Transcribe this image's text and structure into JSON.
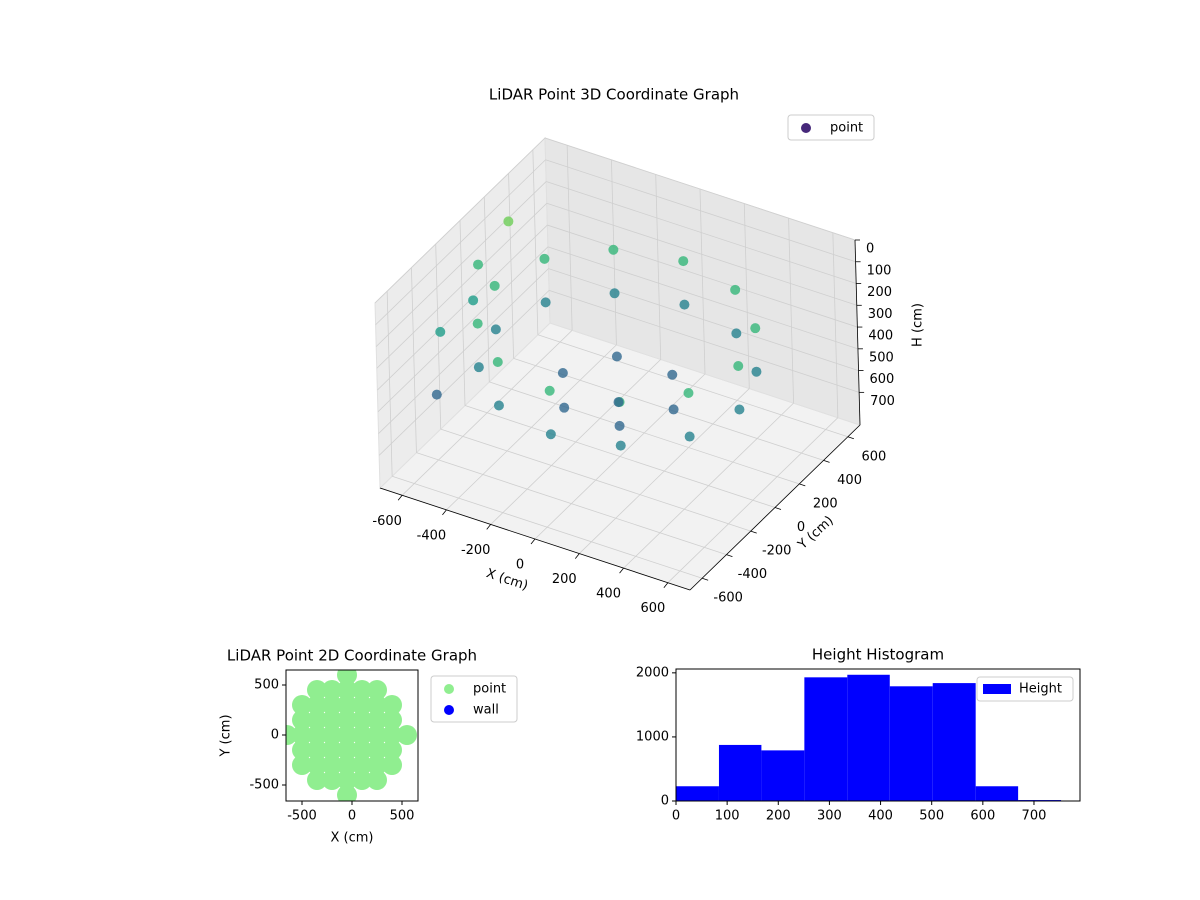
{
  "chart_data": [
    {
      "type": "scatter3d",
      "title": "LiDAR Point 3D Coordinate Graph",
      "xlabel": "X (cm)",
      "ylabel": "Y (cm)",
      "zlabel": "H (cm)",
      "series": [
        {
          "name": "point",
          "color": "#46287a",
          "colormap": "viridis",
          "color_by": "z",
          "colormap_reversed": true,
          "x": [
            550,
            476,
            275,
            0,
            -275,
            -476,
            -550,
            -476,
            -275,
            0,
            275,
            476,
            550,
            476,
            275,
            0,
            -275,
            -476,
            -550,
            -476,
            -275,
            0,
            275,
            476,
            250,
            125,
            -125,
            -250,
            -125,
            125,
            0,
            -650,
            -680,
            -690,
            -600,
            -650
          ],
          "y": [
            0,
            275,
            476,
            550,
            476,
            275,
            0,
            -275,
            -476,
            -550,
            -476,
            -275,
            0,
            275,
            476,
            550,
            476,
            275,
            0,
            -275,
            -476,
            -550,
            -476,
            -275,
            0,
            217,
            217,
            0,
            -217,
            -217,
            0,
            300,
            100,
            -200,
            -400,
            0
          ],
          "z": [
            250,
            250,
            250,
            250,
            250,
            250,
            250,
            250,
            250,
            250,
            250,
            250,
            450,
            450,
            450,
            450,
            450,
            450,
            450,
            450,
            450,
            450,
            450,
            450,
            550,
            550,
            550,
            550,
            550,
            550,
            600,
            150,
            250,
            400,
            550,
            350
          ]
        }
      ],
      "xlim": [
        -700,
        700
      ],
      "ylim": [
        -700,
        700
      ],
      "zlim": [
        0,
        850
      ],
      "z_inverted": true,
      "xticks": [
        -600,
        -400,
        -200,
        0,
        200,
        400,
        600
      ],
      "yticks": [
        -600,
        -400,
        -200,
        0,
        200,
        400,
        600
      ],
      "zticks": [
        0,
        100,
        200,
        300,
        400,
        500,
        600,
        700
      ],
      "grid": true,
      "legend": "upper right"
    },
    {
      "type": "scatter",
      "title": "LiDAR Point 2D Coordinate Graph",
      "xlabel": "X (cm)",
      "ylabel": "Y (cm)",
      "series": [
        {
          "name": "point",
          "color": "#90ee90",
          "x": [
            -50,
            -350,
            -200,
            -50,
            100,
            250,
            -500,
            -350,
            -200,
            -50,
            100,
            250,
            400,
            -500,
            -350,
            -200,
            -50,
            100,
            250,
            400,
            -650,
            -500,
            -350,
            -200,
            -50,
            100,
            250,
            400,
            550,
            -500,
            -350,
            -200,
            -50,
            100,
            250,
            400,
            -500,
            -350,
            -200,
            -50,
            100,
            250,
            400,
            -350,
            -200,
            -50,
            100,
            250,
            -50
          ],
          "y": [
            600,
            450,
            450,
            450,
            450,
            450,
            300,
            300,
            300,
            300,
            300,
            300,
            300,
            150,
            150,
            150,
            150,
            150,
            150,
            150,
            0,
            0,
            0,
            0,
            0,
            0,
            0,
            0,
            0,
            -150,
            -150,
            -150,
            -150,
            -150,
            -150,
            -150,
            -300,
            -300,
            -300,
            -300,
            -300,
            -300,
            -300,
            -450,
            -450,
            -450,
            -450,
            -450,
            -600
          ]
        },
        {
          "name": "wall",
          "color": "#0000ff",
          "x": [],
          "y": []
        }
      ],
      "xlim": [
        -660,
        660
      ],
      "ylim": [
        -660,
        650
      ],
      "xticks": [
        -500,
        0,
        500
      ],
      "yticks": [
        -500,
        0,
        500
      ],
      "legend": "outside right"
    },
    {
      "type": "histogram",
      "title": "Height Histogram",
      "bins": [
        0,
        84,
        167,
        251,
        335,
        418,
        502,
        586,
        669,
        753
      ],
      "series": [
        {
          "name": "Height",
          "color": "#0000ff",
          "values": [
            230,
            875,
            790,
            1930,
            1970,
            1790,
            1840,
            230,
            15
          ]
        }
      ],
      "xlim": [
        0,
        790
      ],
      "ylim": [
        0,
        2060
      ],
      "xticks": [
        0,
        100,
        200,
        300,
        400,
        500,
        600,
        700
      ],
      "yticks": [
        0,
        1000,
        2000
      ],
      "legend": "upper right"
    }
  ]
}
